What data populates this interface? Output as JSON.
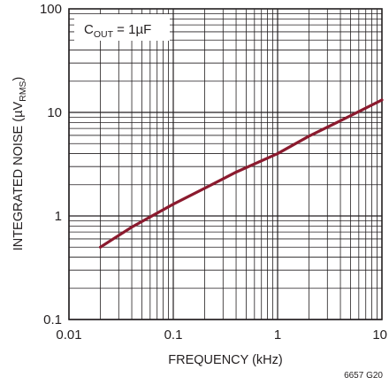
{
  "chart_data": {
    "type": "line",
    "xscale": "log",
    "yscale": "log",
    "xlim": [
      0.01,
      10
    ],
    "ylim": [
      0.1,
      100
    ],
    "grid": true,
    "xlabel": "FREQUENCY (kHz)",
    "ylabel_main": "INTEGRATED NOISE (µV",
    "ylabel_sub": "RMS",
    "ylabel_end": ")",
    "xticks": [
      {
        "value": 0.01,
        "label": "0.01"
      },
      {
        "value": 0.1,
        "label": "0.1"
      },
      {
        "value": 1,
        "label": "1"
      },
      {
        "value": 10,
        "label": "10"
      }
    ],
    "yticks": [
      {
        "value": 0.1,
        "label": "0.1"
      },
      {
        "value": 1,
        "label": "1"
      },
      {
        "value": 10,
        "label": "10"
      },
      {
        "value": 100,
        "label": "100"
      }
    ],
    "annotation": {
      "main": "C",
      "sub": "OUT",
      "rest": " = 1µF"
    },
    "figure_id": "6657 G20",
    "series": [
      {
        "color": "#8b1a2e",
        "x": [
          0.02,
          0.04,
          0.1,
          0.2,
          0.4,
          1,
          2,
          4,
          10
        ],
        "y": [
          0.5,
          0.78,
          1.3,
          1.85,
          2.65,
          4.0,
          5.9,
          8.3,
          13.2
        ]
      }
    ]
  }
}
